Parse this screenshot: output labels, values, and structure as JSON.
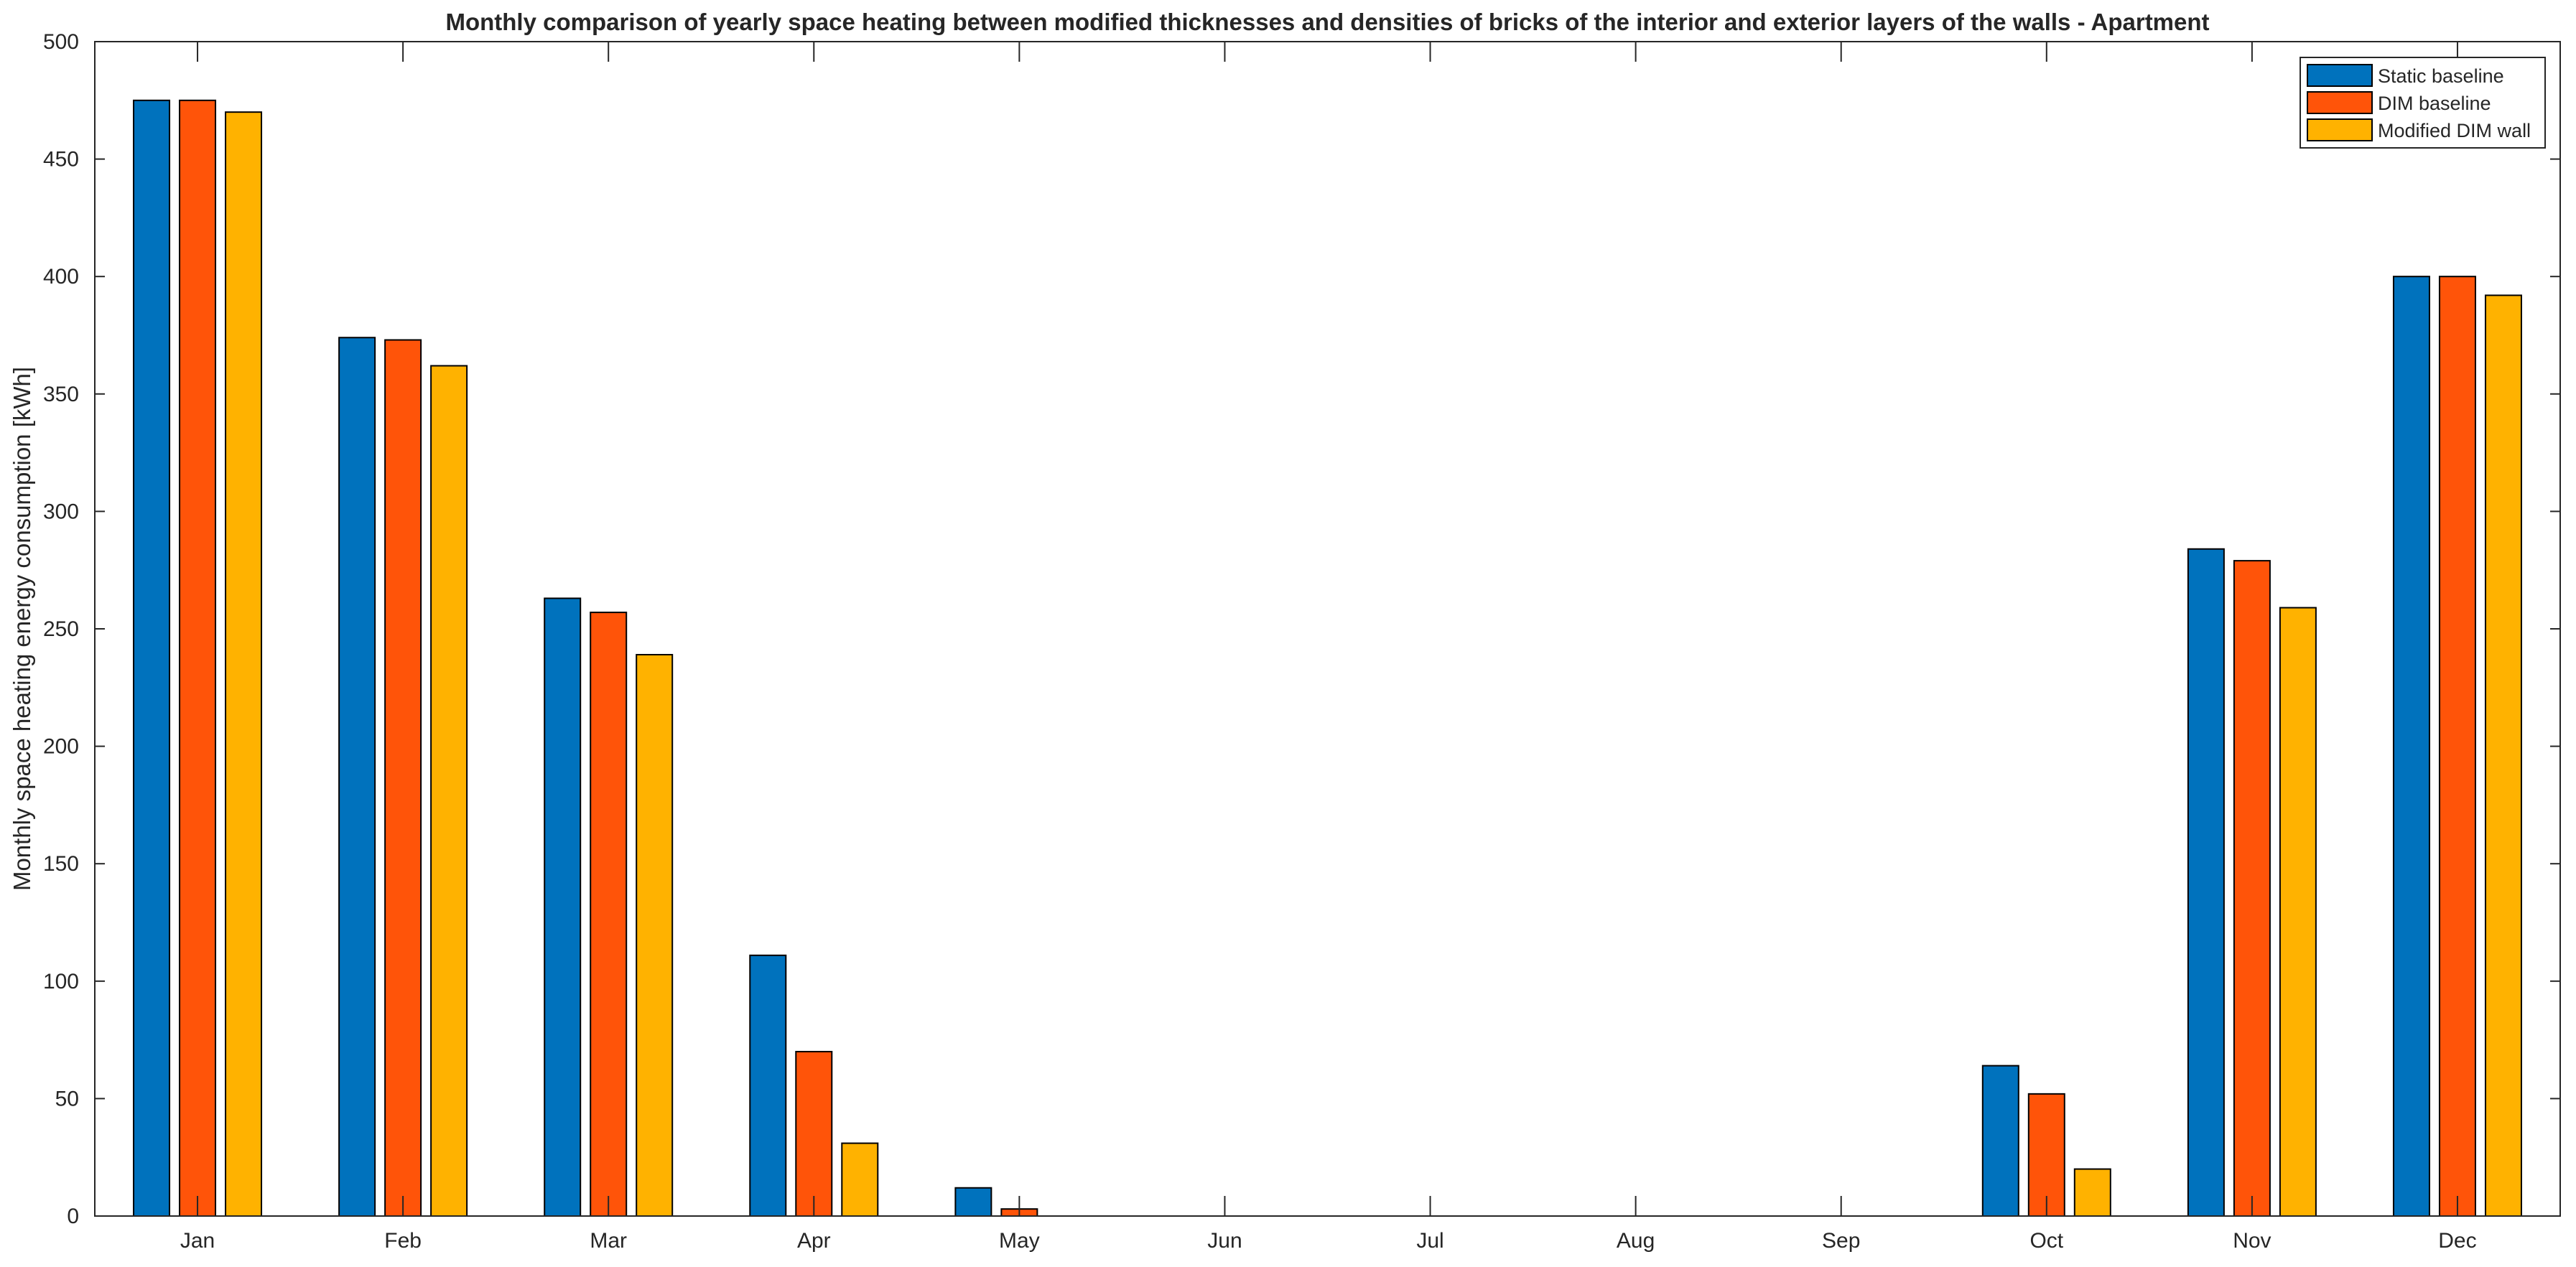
{
  "chart_data": {
    "type": "bar",
    "title": "Monthly comparison of yearly space heating between modified thicknesses and densities of bricks of the interior and exterior layers of the walls - Apartment",
    "xlabel": "",
    "ylabel": "Monthly space heating energy consumption [kWh]",
    "ylim": [
      0,
      500
    ],
    "yticks": [
      0,
      50,
      100,
      150,
      200,
      250,
      300,
      350,
      400,
      450,
      500
    ],
    "categories": [
      "Jan",
      "Feb",
      "Mar",
      "Apr",
      "May",
      "Jun",
      "Jul",
      "Aug",
      "Sep",
      "Oct",
      "Nov",
      "Dec"
    ],
    "series": [
      {
        "name": "Static baseline",
        "color": "#0072BD",
        "values": [
          475,
          374,
          263,
          111,
          12,
          0,
          0,
          0,
          0,
          64,
          284,
          400
        ]
      },
      {
        "name": "DIM baseline",
        "color": "#FF5409",
        "values": [
          475,
          373,
          257,
          70,
          3,
          0,
          0,
          0,
          0,
          52,
          279,
          400
        ]
      },
      {
        "name": "Modified DIM wall",
        "color": "#FFB200",
        "values": [
          470,
          362,
          239,
          31,
          0,
          0,
          0,
          0,
          0,
          20,
          259,
          392
        ]
      }
    ],
    "grid": false,
    "legend_position": "top-right"
  }
}
